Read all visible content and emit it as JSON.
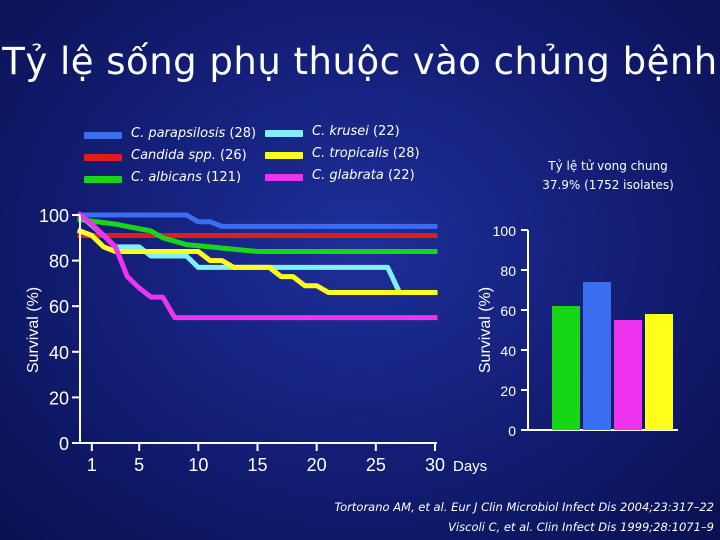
{
  "title": "Tỷ lệ sống phụ thuộc vào chủng bệnh",
  "legend_left": [
    {
      "name": "C. parapsilosis",
      "count": "(28)",
      "color": "#3a6ef0"
    },
    {
      "name": "Candida spp.",
      "count": "(26)",
      "color": "#e41b1b"
    },
    {
      "name": "C. albicans",
      "count": "(121)",
      "color": "#16d616"
    }
  ],
  "legend_right": [
    {
      "name": "C. krusei",
      "count": "(22)",
      "color": "#7ff0f7"
    },
    {
      "name": "C. tropicalis",
      "count": "(28)",
      "color": "#ffff1a"
    },
    {
      "name": "C. glabrata",
      "count": "(22)",
      "color": "#ee33ee"
    }
  ],
  "mortality_note": {
    "line1": "Tỷ lệ tử vong chung",
    "line2": "37.9% (1752 isolates)"
  },
  "citations": [
    "Tortorano AM, et al. Eur J Clin Microbiol Infect Dis 2004;23:317–22",
    "Viscoli C, et al. Clin Infect Dis 1999;28:1071–9"
  ],
  "chart_data": [
    {
      "type": "line",
      "ylabel": "Survival (%)",
      "xlabel": "Days",
      "x_ticks": [
        "1",
        "5",
        "10",
        "15",
        "20",
        "25",
        "30"
      ],
      "y_ticks": [
        "0",
        "20",
        "40",
        "60",
        "80",
        "100"
      ],
      "xlim": [
        0,
        30
      ],
      "ylim": [
        0,
        100
      ],
      "grid": false,
      "series": [
        {
          "name": "C. parapsilosis",
          "color": "#3a6ef0",
          "points": [
            [
              0,
              100
            ],
            [
              9,
              100
            ],
            [
              10,
              97
            ],
            [
              11,
              97
            ],
            [
              12,
              95
            ],
            [
              30,
              95
            ]
          ]
        },
        {
          "name": "Candida spp.",
          "color": "#e41b1b",
          "points": [
            [
              0,
              91
            ],
            [
              30,
              91
            ]
          ]
        },
        {
          "name": "C. albicans",
          "color": "#16d616",
          "points": [
            [
              0,
              98
            ],
            [
              3,
              96
            ],
            [
              4,
              95
            ],
            [
              6,
              93
            ],
            [
              7,
              90
            ],
            [
              9,
              87
            ],
            [
              11,
              86
            ],
            [
              13,
              85
            ],
            [
              15,
              84
            ],
            [
              30,
              84
            ]
          ]
        },
        {
          "name": "C. krusei",
          "color": "#7ff0f7",
          "points": [
            [
              0,
              100
            ],
            [
              2,
              91
            ],
            [
              3,
              86
            ],
            [
              5,
              86
            ],
            [
              6,
              82
            ],
            [
              9,
              82
            ],
            [
              10,
              77
            ],
            [
              26,
              77
            ],
            [
              27,
              66
            ],
            [
              30,
              66
            ]
          ]
        },
        {
          "name": "C. tropicalis",
          "color": "#ffff1a",
          "points": [
            [
              0,
              93
            ],
            [
              1,
              91
            ],
            [
              2,
              86
            ],
            [
              3,
              84
            ],
            [
              10,
              84
            ],
            [
              11,
              80
            ],
            [
              12,
              80
            ],
            [
              13,
              77
            ],
            [
              16,
              77
            ],
            [
              17,
              73
            ],
            [
              18,
              73
            ],
            [
              19,
              69
            ],
            [
              20,
              69
            ],
            [
              21,
              66
            ],
            [
              30,
              66
            ]
          ]
        },
        {
          "name": "C. glabrata",
          "color": "#ee33ee",
          "points": [
            [
              0,
              100
            ],
            [
              1,
              96
            ],
            [
              2,
              91
            ],
            [
              3,
              86
            ],
            [
              4,
              73
            ],
            [
              5,
              68
            ],
            [
              6,
              64
            ],
            [
              7,
              64
            ],
            [
              8,
              55
            ],
            [
              30,
              55
            ]
          ]
        }
      ]
    },
    {
      "type": "bar",
      "ylabel": "Survival (%)",
      "y_ticks": [
        "0",
        "20",
        "40",
        "60",
        "80",
        "100"
      ],
      "ylim": [
        0,
        100
      ],
      "grid": false,
      "categories": [
        "C. albicans",
        "C. parapsilosis",
        "C. glabrata",
        "C. tropicalis"
      ],
      "values": [
        62,
        74,
        55,
        58
      ],
      "colors": [
        "#16d616",
        "#3a6ef0",
        "#ee33ee",
        "#ffff1a"
      ]
    }
  ]
}
